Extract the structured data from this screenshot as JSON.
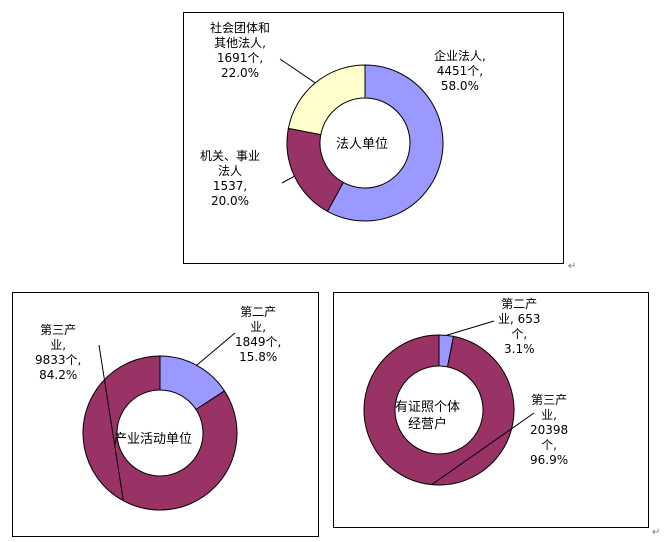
{
  "colors": {
    "blue": "#9999FF",
    "maroon": "#993366",
    "yellow": "#FFFFCC",
    "stroke": "#000000"
  },
  "return_mark": "↵",
  "chart_data": [
    {
      "type": "pie",
      "center_label": "法人单位",
      "slices": [
        {
          "name": "企业法人",
          "count": "4451个",
          "pct": "58.0%",
          "value": 58.0,
          "color": "#9999FF"
        },
        {
          "name": "机关、事业法人",
          "count": "1537",
          "pct": "20.0%",
          "value": 20.0,
          "color": "#993366"
        },
        {
          "name": "社会团体和其他法人",
          "count": "1691个",
          "pct": "22.0%",
          "value": 22.0,
          "color": "#FFFFCC"
        }
      ],
      "labels": [
        {
          "lines": [
            "企业法人,",
            "4451个,",
            "58.0%"
          ]
        },
        {
          "lines": [
            "机关、事业",
            "法人",
            "1537,",
            "20.0%"
          ]
        },
        {
          "lines": [
            "社会团体和",
            "其他法人,",
            "1691个,",
            "22.0%"
          ]
        }
      ]
    },
    {
      "type": "pie",
      "center_label": "产业活动单位",
      "slices": [
        {
          "name": "第二产业",
          "count": "1849个",
          "pct": "15.8%",
          "value": 15.8,
          "color": "#9999FF"
        },
        {
          "name": "第三产业",
          "count": "9833个",
          "pct": "84.2%",
          "value": 84.2,
          "color": "#993366"
        }
      ],
      "labels": [
        {
          "lines": [
            "第二产",
            "业,",
            "1849个,",
            "15.8%"
          ]
        },
        {
          "lines": [
            "第三产",
            "业,",
            "9833个,",
            "84.2%"
          ]
        }
      ]
    },
    {
      "type": "pie",
      "center_label": "有证照个体经营户",
      "center_lines": [
        "有证照个体",
        "经营户"
      ],
      "slices": [
        {
          "name": "第二产业",
          "count": "653个",
          "pct": "3.1%",
          "value": 3.1,
          "color": "#9999FF"
        },
        {
          "name": "第三产业",
          "count": "20398个",
          "pct": "96.9%",
          "value": 96.9,
          "color": "#993366"
        }
      ],
      "labels": [
        {
          "lines": [
            "第二产",
            "业, 653",
            "个,",
            "3.1%"
          ]
        },
        {
          "lines": [
            "第三产",
            "业,",
            "20398",
            "个,",
            "96.9%"
          ]
        }
      ]
    }
  ]
}
